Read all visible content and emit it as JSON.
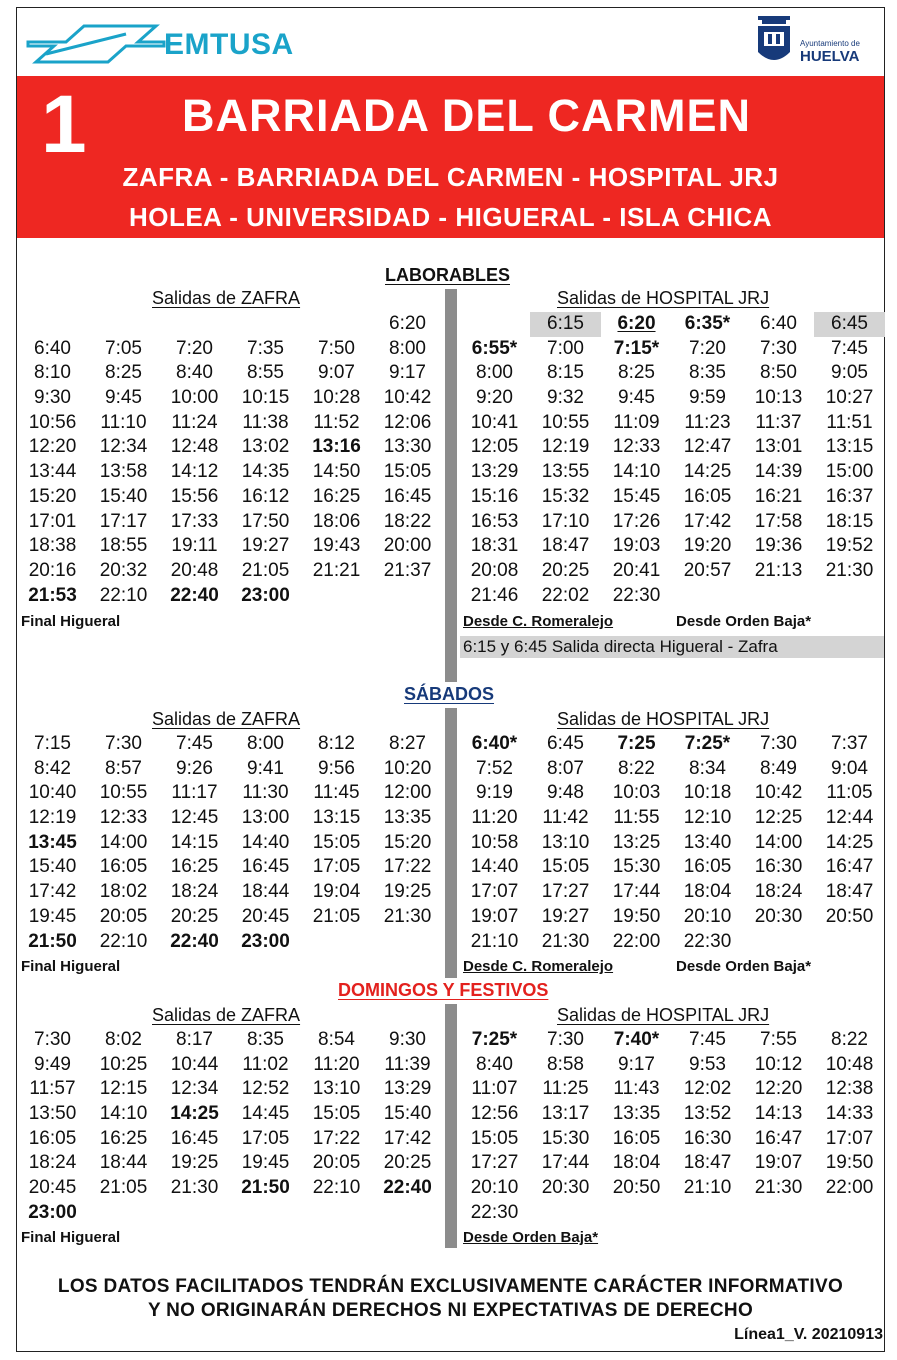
{
  "header": {
    "brand": "EMTUSA",
    "crest_sub": "Ayuntamiento de",
    "crest_city": "HUELVA"
  },
  "banner": {
    "line_number": "1",
    "line_name": "BARRIADA DEL CARMEN",
    "route_line1": "ZAFRA - BARRIADA DEL CARMEN - HOSPITAL JRJ",
    "route_line2": "HOLEA - UNIVERSIDAD - HIGUERAL - ISLA CHICA"
  },
  "laborables": {
    "title": "LABORABLES",
    "zafra": {
      "heading": "Salidas de ZAFRA",
      "times": [
        {
          "t": ""
        },
        {
          "t": ""
        },
        {
          "t": ""
        },
        {
          "t": ""
        },
        {
          "t": ""
        },
        {
          "t": "6:20"
        },
        {
          "t": "6:40"
        },
        {
          "t": "7:05"
        },
        {
          "t": "7:20"
        },
        {
          "t": "7:35"
        },
        {
          "t": "7:50"
        },
        {
          "t": "8:00"
        },
        {
          "t": "8:10"
        },
        {
          "t": "8:25"
        },
        {
          "t": "8:40"
        },
        {
          "t": "8:55"
        },
        {
          "t": "9:07"
        },
        {
          "t": "9:17"
        },
        {
          "t": "9:30"
        },
        {
          "t": "9:45"
        },
        {
          "t": "10:00"
        },
        {
          "t": "10:15"
        },
        {
          "t": "10:28"
        },
        {
          "t": "10:42"
        },
        {
          "t": "10:56"
        },
        {
          "t": "11:10"
        },
        {
          "t": "11:24"
        },
        {
          "t": "11:38"
        },
        {
          "t": "11:52"
        },
        {
          "t": "12:06"
        },
        {
          "t": "12:20"
        },
        {
          "t": "12:34"
        },
        {
          "t": "12:48"
        },
        {
          "t": "13:02"
        },
        {
          "t": "13:16",
          "b": true
        },
        {
          "t": "13:30"
        },
        {
          "t": "13:44"
        },
        {
          "t": "13:58"
        },
        {
          "t": "14:12"
        },
        {
          "t": "14:35"
        },
        {
          "t": "14:50"
        },
        {
          "t": "15:05"
        },
        {
          "t": "15:20"
        },
        {
          "t": "15:40"
        },
        {
          "t": "15:56"
        },
        {
          "t": "16:12"
        },
        {
          "t": "16:25"
        },
        {
          "t": "16:45"
        },
        {
          "t": "17:01"
        },
        {
          "t": "17:17"
        },
        {
          "t": "17:33"
        },
        {
          "t": "17:50"
        },
        {
          "t": "18:06"
        },
        {
          "t": "18:22"
        },
        {
          "t": "18:38"
        },
        {
          "t": "18:55"
        },
        {
          "t": "19:11"
        },
        {
          "t": "19:27"
        },
        {
          "t": "19:43"
        },
        {
          "t": "20:00"
        },
        {
          "t": "20:16"
        },
        {
          "t": "20:32"
        },
        {
          "t": "20:48"
        },
        {
          "t": "21:05"
        },
        {
          "t": "21:21"
        },
        {
          "t": "21:37"
        },
        {
          "t": "21:53",
          "b": true
        },
        {
          "t": "22:10"
        },
        {
          "t": "22:40",
          "b": true
        },
        {
          "t": "23:00",
          "b": true
        }
      ],
      "footer": "Final  Higueral"
    },
    "hospital": {
      "heading": "Salidas de HOSPITAL JRJ",
      "times": [
        {
          "t": ""
        },
        {
          "t": "6:15",
          "g": true
        },
        {
          "t": "6:20",
          "b": true,
          "u": true
        },
        {
          "t": "6:35*",
          "b": true
        },
        {
          "t": "6:40"
        },
        {
          "t": "6:45",
          "g": true
        },
        {
          "t": "6:55*",
          "b": true
        },
        {
          "t": "7:00"
        },
        {
          "t": "7:15*",
          "b": true
        },
        {
          "t": "7:20"
        },
        {
          "t": "7:30"
        },
        {
          "t": "7:45"
        },
        {
          "t": "8:00"
        },
        {
          "t": "8:15"
        },
        {
          "t": "8:25"
        },
        {
          "t": "8:35"
        },
        {
          "t": "8:50"
        },
        {
          "t": "9:05"
        },
        {
          "t": "9:20"
        },
        {
          "t": "9:32"
        },
        {
          "t": "9:45"
        },
        {
          "t": "9:59"
        },
        {
          "t": "10:13"
        },
        {
          "t": "10:27"
        },
        {
          "t": "10:41"
        },
        {
          "t": "10:55"
        },
        {
          "t": "11:09"
        },
        {
          "t": "11:23"
        },
        {
          "t": "11:37"
        },
        {
          "t": "11:51"
        },
        {
          "t": "12:05"
        },
        {
          "t": "12:19"
        },
        {
          "t": "12:33"
        },
        {
          "t": "12:47"
        },
        {
          "t": "13:01"
        },
        {
          "t": "13:15"
        },
        {
          "t": "13:29"
        },
        {
          "t": "13:55"
        },
        {
          "t": "14:10"
        },
        {
          "t": "14:25"
        },
        {
          "t": "14:39"
        },
        {
          "t": "15:00"
        },
        {
          "t": "15:16"
        },
        {
          "t": "15:32"
        },
        {
          "t": "15:45"
        },
        {
          "t": "16:05"
        },
        {
          "t": "16:21"
        },
        {
          "t": "16:37"
        },
        {
          "t": "16:53"
        },
        {
          "t": "17:10"
        },
        {
          "t": "17:26"
        },
        {
          "t": "17:42"
        },
        {
          "t": "17:58"
        },
        {
          "t": "18:15"
        },
        {
          "t": "18:31"
        },
        {
          "t": "18:47"
        },
        {
          "t": "19:03"
        },
        {
          "t": "19:20"
        },
        {
          "t": "19:36"
        },
        {
          "t": "19:52"
        },
        {
          "t": "20:08"
        },
        {
          "t": "20:25"
        },
        {
          "t": "20:41"
        },
        {
          "t": "20:57"
        },
        {
          "t": "21:13"
        },
        {
          "t": "21:30"
        },
        {
          "t": "21:46"
        },
        {
          "t": "22:02"
        },
        {
          "t": "22:30"
        }
      ],
      "footer_left": "Desde C. Romeralejo",
      "footer_right": "Desde Orden Baja*",
      "note": "6:15 y 6:45 Salida directa Higueral - Zafra"
    }
  },
  "sabados": {
    "title": "SÁBADOS",
    "zafra": {
      "heading": "Salidas de ZAFRA",
      "times": [
        {
          "t": "7:15"
        },
        {
          "t": "7:30"
        },
        {
          "t": "7:45"
        },
        {
          "t": "8:00"
        },
        {
          "t": "8:12"
        },
        {
          "t": "8:27"
        },
        {
          "t": "8:42"
        },
        {
          "t": "8:57"
        },
        {
          "t": "9:26"
        },
        {
          "t": "9:41"
        },
        {
          "t": "9:56"
        },
        {
          "t": "10:20"
        },
        {
          "t": "10:40"
        },
        {
          "t": "10:55"
        },
        {
          "t": "11:17"
        },
        {
          "t": "11:30"
        },
        {
          "t": "11:45"
        },
        {
          "t": "12:00"
        },
        {
          "t": "12:19"
        },
        {
          "t": "12:33"
        },
        {
          "t": "12:45"
        },
        {
          "t": "13:00"
        },
        {
          "t": "13:15"
        },
        {
          "t": "13:35"
        },
        {
          "t": "13:45",
          "b": true
        },
        {
          "t": "14:00"
        },
        {
          "t": "14:15"
        },
        {
          "t": "14:40"
        },
        {
          "t": "15:05"
        },
        {
          "t": "15:20"
        },
        {
          "t": "15:40"
        },
        {
          "t": "16:05"
        },
        {
          "t": "16:25"
        },
        {
          "t": "16:45"
        },
        {
          "t": "17:05"
        },
        {
          "t": "17:22"
        },
        {
          "t": "17:42"
        },
        {
          "t": "18:02"
        },
        {
          "t": "18:24"
        },
        {
          "t": "18:44"
        },
        {
          "t": "19:04"
        },
        {
          "t": "19:25"
        },
        {
          "t": "19:45"
        },
        {
          "t": "20:05"
        },
        {
          "t": "20:25"
        },
        {
          "t": "20:45"
        },
        {
          "t": "21:05"
        },
        {
          "t": "21:30"
        },
        {
          "t": "21:50",
          "b": true
        },
        {
          "t": "22:10"
        },
        {
          "t": "22:40",
          "b": true
        },
        {
          "t": "23:00",
          "b": true
        }
      ],
      "footer": "Final  Higueral"
    },
    "hospital": {
      "heading": "Salidas de HOSPITAL JRJ",
      "times": [
        {
          "t": "6:40*",
          "b": true
        },
        {
          "t": "6:45"
        },
        {
          "t": "7:25",
          "b": true
        },
        {
          "t": "7:25*",
          "b": true
        },
        {
          "t": "7:30"
        },
        {
          "t": "7:37"
        },
        {
          "t": "7:52"
        },
        {
          "t": "8:07"
        },
        {
          "t": "8:22"
        },
        {
          "t": "8:34"
        },
        {
          "t": "8:49"
        },
        {
          "t": "9:04"
        },
        {
          "t": "9:19"
        },
        {
          "t": "9:48"
        },
        {
          "t": "10:03"
        },
        {
          "t": "10:18"
        },
        {
          "t": "10:42"
        },
        {
          "t": "11:05"
        },
        {
          "t": "11:20"
        },
        {
          "t": "11:42"
        },
        {
          "t": "11:55"
        },
        {
          "t": "12:10"
        },
        {
          "t": "12:25"
        },
        {
          "t": "12:44"
        },
        {
          "t": "10:58"
        },
        {
          "t": "13:10"
        },
        {
          "t": "13:25"
        },
        {
          "t": "13:40"
        },
        {
          "t": "14:00"
        },
        {
          "t": "14:25"
        },
        {
          "t": "14:40"
        },
        {
          "t": "15:05"
        },
        {
          "t": "15:30"
        },
        {
          "t": "16:05"
        },
        {
          "t": "16:30"
        },
        {
          "t": "16:47"
        },
        {
          "t": "17:07"
        },
        {
          "t": "17:27"
        },
        {
          "t": "17:44"
        },
        {
          "t": "18:04"
        },
        {
          "t": "18:24"
        },
        {
          "t": "18:47"
        },
        {
          "t": "19:07"
        },
        {
          "t": "19:27"
        },
        {
          "t": "19:50"
        },
        {
          "t": "20:10"
        },
        {
          "t": "20:30"
        },
        {
          "t": "20:50"
        },
        {
          "t": "21:10"
        },
        {
          "t": "21:30"
        },
        {
          "t": "22:00"
        },
        {
          "t": "22:30"
        }
      ],
      "footer_left": "Desde C. Romeralejo",
      "footer_right": "Desde Orden Baja*"
    }
  },
  "domingos": {
    "title": "DOMINGOS Y FESTIVOS",
    "zafra": {
      "heading": "Salidas de ZAFRA",
      "times": [
        {
          "t": "7:30"
        },
        {
          "t": "8:02"
        },
        {
          "t": "8:17"
        },
        {
          "t": "8:35"
        },
        {
          "t": "8:54"
        },
        {
          "t": "9:30"
        },
        {
          "t": "9:49"
        },
        {
          "t": "10:25"
        },
        {
          "t": "10:44"
        },
        {
          "t": "11:02"
        },
        {
          "t": "11:20"
        },
        {
          "t": "11:39"
        },
        {
          "t": "11:57"
        },
        {
          "t": "12:15"
        },
        {
          "t": "12:34"
        },
        {
          "t": "12:52"
        },
        {
          "t": "13:10"
        },
        {
          "t": "13:29"
        },
        {
          "t": "13:50"
        },
        {
          "t": "14:10"
        },
        {
          "t": "14:25",
          "b": true
        },
        {
          "t": "14:45"
        },
        {
          "t": "15:05"
        },
        {
          "t": "15:40"
        },
        {
          "t": "16:05"
        },
        {
          "t": "16:25"
        },
        {
          "t": "16:45"
        },
        {
          "t": "17:05"
        },
        {
          "t": "17:22"
        },
        {
          "t": "17:42"
        },
        {
          "t": "18:24"
        },
        {
          "t": "18:44"
        },
        {
          "t": "19:25"
        },
        {
          "t": "19:45"
        },
        {
          "t": "20:05"
        },
        {
          "t": "20:25"
        },
        {
          "t": "20:45"
        },
        {
          "t": "21:05"
        },
        {
          "t": "21:30"
        },
        {
          "t": "21:50",
          "b": true
        },
        {
          "t": "22:10"
        },
        {
          "t": "22:40",
          "b": true
        },
        {
          "t": "23:00",
          "b": true
        }
      ],
      "footer": "Final  Higueral"
    },
    "hospital": {
      "heading": "Salidas de HOSPITAL JRJ",
      "times": [
        {
          "t": "7:25*",
          "b": true
        },
        {
          "t": "7:30"
        },
        {
          "t": "7:40*",
          "b": true
        },
        {
          "t": "7:45"
        },
        {
          "t": "7:55"
        },
        {
          "t": "8:22"
        },
        {
          "t": "8:40"
        },
        {
          "t": "8:58"
        },
        {
          "t": "9:17"
        },
        {
          "t": "9:53"
        },
        {
          "t": "10:12"
        },
        {
          "t": "10:48"
        },
        {
          "t": "11:07"
        },
        {
          "t": "11:25"
        },
        {
          "t": "11:43"
        },
        {
          "t": "12:02"
        },
        {
          "t": "12:20"
        },
        {
          "t": "12:38"
        },
        {
          "t": "12:56"
        },
        {
          "t": "13:17"
        },
        {
          "t": "13:35"
        },
        {
          "t": "13:52"
        },
        {
          "t": "14:13"
        },
        {
          "t": "14:33"
        },
        {
          "t": "15:05"
        },
        {
          "t": "15:30"
        },
        {
          "t": "16:05"
        },
        {
          "t": "16:30"
        },
        {
          "t": "16:47"
        },
        {
          "t": "17:07"
        },
        {
          "t": "17:27"
        },
        {
          "t": "17:44"
        },
        {
          "t": "18:04"
        },
        {
          "t": "18:47"
        },
        {
          "t": "19:07"
        },
        {
          "t": "19:50"
        },
        {
          "t": "20:10"
        },
        {
          "t": "20:30"
        },
        {
          "t": "20:50"
        },
        {
          "t": "21:10"
        },
        {
          "t": "21:30"
        },
        {
          "t": "22:00"
        },
        {
          "t": "22:30"
        }
      ],
      "footer_left": "Desde Orden Baja*"
    }
  },
  "footer": {
    "disclaimer_line1": "LOS DATOS FACILITADOS TENDRÁN EXCLUSIVAMENTE CARÁCTER INFORMATIVO",
    "disclaimer_line2": "Y NO ORIGINARÁN DERECHOS NI EXPECTATIVAS DE DERECHO",
    "version": "Línea1_V. 20210913"
  },
  "colors": {
    "banner_red": "#ee2722",
    "brand_blue": "#1aa3c9",
    "laborables_title": "#111111",
    "sabados_title": "#173a7a",
    "domingos_title": "#e3211e",
    "divider_gray": "#8c8c8c",
    "highlight_gray": "#d4d4d4"
  },
  "icons": [
    "emtusa-logo-icon",
    "huelva-crest-icon"
  ]
}
